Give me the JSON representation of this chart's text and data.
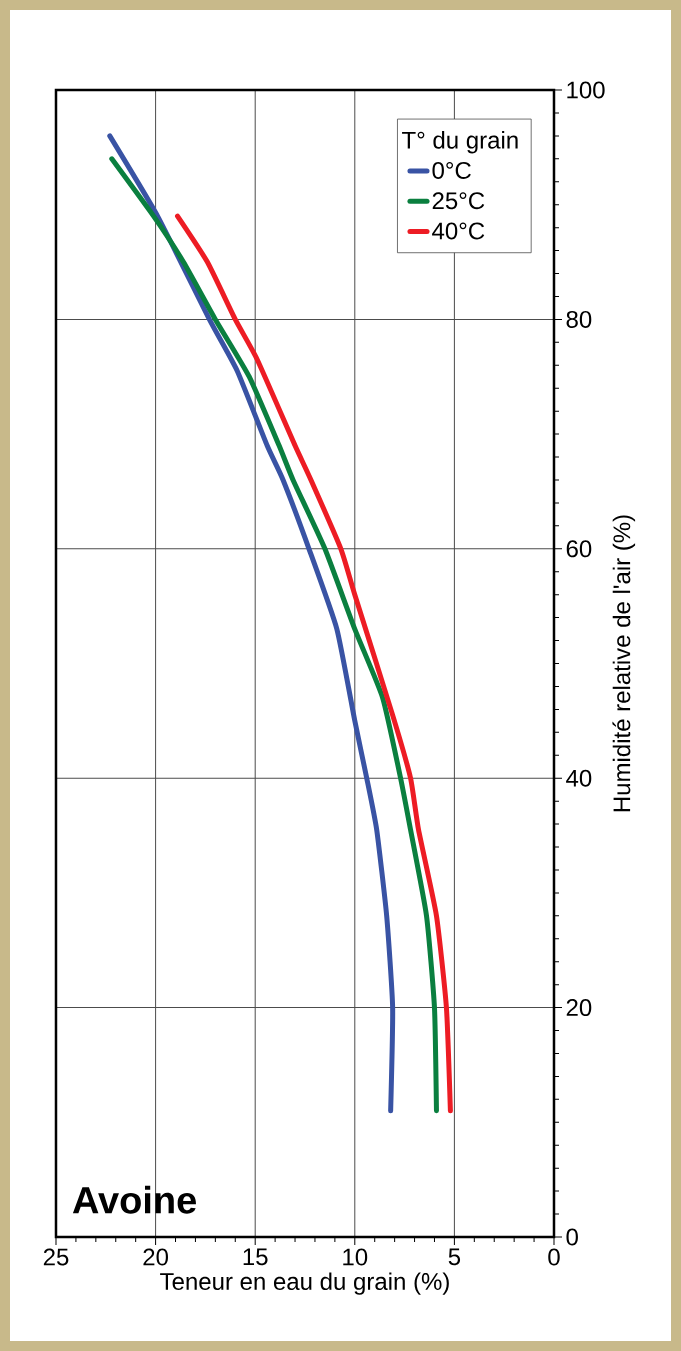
{
  "chart_data": {
    "type": "line",
    "title": "Avoine",
    "xlabel": "Teneur en eau du grain (%)",
    "ylabel": "Humidité relative de l'air (%)",
    "legend_title": "T° du grain",
    "xlim": [
      25,
      0
    ],
    "xticks": [
      0,
      5,
      10,
      15,
      20,
      25
    ],
    "ylim": [
      0,
      100
    ],
    "yticks": [
      0,
      20,
      40,
      60,
      80,
      100
    ],
    "grid": true,
    "legend": "top right",
    "marker": "none",
    "line_style": "solid",
    "series": [
      {
        "name": "0°C",
        "color": "#3953a4",
        "values": [
          11,
          20,
          28,
          35.5,
          40,
          45,
          53,
          60,
          66,
          69,
          75.5,
          80,
          89,
          96
        ],
        "x": [
          8.2,
          8.1,
          8.4,
          8.9,
          9.4,
          10.0,
          10.9,
          12.3,
          13.6,
          14.4,
          15.9,
          17.3,
          19.9,
          22.3
        ]
      },
      {
        "name": "25°C",
        "color": "#0a7f3f",
        "values": [
          11,
          20,
          28,
          35.5,
          40,
          47,
          53,
          60,
          66,
          69,
          75,
          80,
          85,
          89,
          94
        ],
        "x": [
          5.9,
          6.0,
          6.4,
          7.2,
          7.7,
          8.6,
          10.0,
          11.5,
          13.1,
          13.8,
          15.3,
          17.0,
          18.6,
          20.1,
          22.2
        ]
      },
      {
        "name": "40°C",
        "color": "#ed1c24",
        "values": [
          11,
          20,
          28,
          35.5,
          40,
          45.5,
          56,
          60,
          66,
          69,
          76.5,
          80,
          85,
          89
        ],
        "x": [
          5.2,
          5.4,
          5.9,
          6.8,
          7.2,
          8.1,
          10.0,
          10.7,
          12.2,
          13.0,
          14.9,
          16.0,
          17.4,
          18.9
        ]
      }
    ]
  }
}
